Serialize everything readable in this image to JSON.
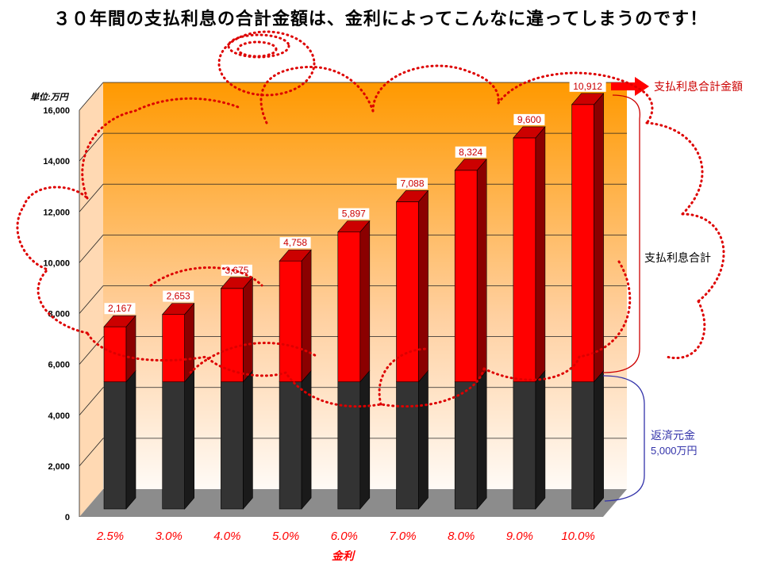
{
  "title": "３０年間の支払利息の合計金額は、金利によってこんなに違ってしまうのです！",
  "chart_data": {
    "type": "bar",
    "stacked": true,
    "unit_label": "単位:万円",
    "xlabel": "金利",
    "ylabel": "",
    "categories": [
      "2.5%",
      "3.0%",
      "4.0%",
      "5.0%",
      "6.0%",
      "7.0%",
      "8.0%",
      "9.0%",
      "10.0%"
    ],
    "series": [
      {
        "name": "返済元金",
        "values": [
          5000,
          5000,
          5000,
          5000,
          5000,
          5000,
          5000,
          5000,
          5000
        ],
        "color": "#333333"
      },
      {
        "name": "支払利息合計",
        "values": [
          2167,
          2653,
          3675,
          4758,
          5897,
          7088,
          8324,
          9600,
          10912
        ],
        "color": "#ff0000"
      }
    ],
    "data_labels": [
      "2,167",
      "2,653",
      "3,675",
      "4,758",
      "5,897",
      "7,088",
      "8,324",
      "9,600",
      "10,912"
    ],
    "yticks": [
      "0",
      "2,000",
      "4,000",
      "6,000",
      "8,000",
      "10,000",
      "12,000",
      "14,000",
      "16,000"
    ],
    "ylim": [
      0,
      16000
    ],
    "grid": true
  },
  "annotations": {
    "interest_total_arrow": "支払利息合計金額",
    "interest_total_brace": "支払利息合計",
    "principal_line1": "返済元金",
    "principal_line2": "5,000万円"
  },
  "colors": {
    "wall_top": "#ff9900",
    "wall_bottom": "#ffffff",
    "interest": "#ff0000",
    "principal": "#333333",
    "label_red": "#cc0000",
    "principal_note": "#3333aa",
    "dotted_cloud": "#dd0000"
  }
}
